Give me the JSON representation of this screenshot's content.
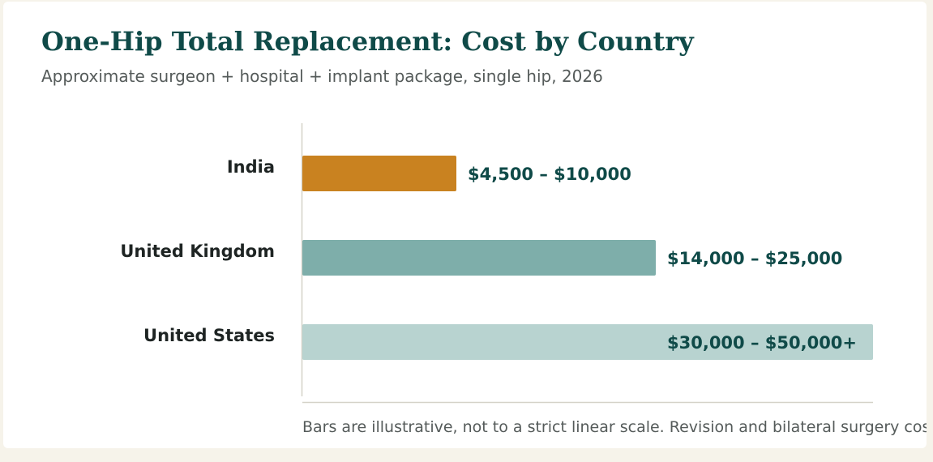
{
  "chart_data": {
    "type": "bar",
    "orientation": "horizontal",
    "title": "One-Hip Total Replacement: Cost by Country",
    "subtitle": "Approximate surgeon + hospital + implant package, single hip, 2026",
    "categories": [
      "India",
      "United Kingdom",
      "United States"
    ],
    "values": [
      0.27,
      0.62,
      1.0
    ],
    "value_labels": [
      "$4,500 – $10,000",
      "$14,000 – $25,000",
      "$30,000 – $50,000+"
    ],
    "colors": [
      "#c98220",
      "#7eaeaa",
      "#b8d3d0"
    ],
    "footnote": "Bars are illustrative, not to a strict linear scale. Revision and bilateral surgery cost more.",
    "grid": false,
    "legend": "none"
  }
}
